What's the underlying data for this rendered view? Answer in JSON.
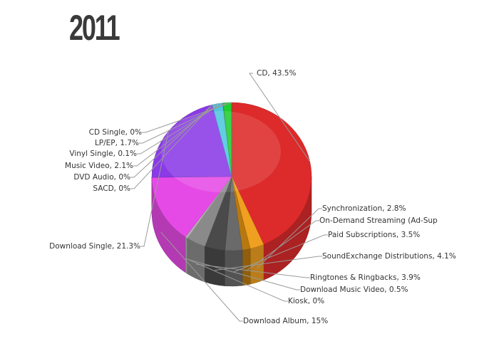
{
  "title": "2011",
  "chart_data": {
    "type": "pie",
    "title": "2011",
    "slices": [
      {
        "label": "CD, 43.5%",
        "name": "CD",
        "value": 43.5,
        "color": "#dd2a2a"
      },
      {
        "label": "Synchronization, 2.8%",
        "name": "Synchronization",
        "value": 2.8,
        "color": "#f0a020"
      },
      {
        "label": "On-Demand Streaming (Ad-Sup",
        "name": "On-Demand Streaming (Ad-Sup",
        "value": 1.6,
        "color": "#b87810"
      },
      {
        "label": "Paid Subscriptions, 3.5%",
        "name": "Paid Subscriptions",
        "value": 3.5,
        "color": "#6a6a6a"
      },
      {
        "label": "SoundExchange Distributions, 4.1%",
        "name": "SoundExchange Distributions",
        "value": 4.1,
        "color": "#4a4a4a"
      },
      {
        "label": "Ringtones & Ringbacks, 3.9%",
        "name": "Ringtones & Ringbacks",
        "value": 3.9,
        "color": "#8a8a8a"
      },
      {
        "label": "Download Music Video, 0.5%",
        "name": "Download Music Video",
        "value": 0.5,
        "color": "#b0b0b0"
      },
      {
        "label": "Kiosk, 0%",
        "name": "Kiosk",
        "value": 0,
        "color": "#cccccc"
      },
      {
        "label": "Download Album, 15%",
        "name": "Download Album",
        "value": 15,
        "color": "#e64ae6"
      },
      {
        "label": "Download Single, 21.3%",
        "name": "Download Single",
        "value": 21.3,
        "color": "#8a3ae6"
      },
      {
        "label": "SACD, 0%",
        "name": "SACD",
        "value": 0,
        "color": "#3a5ad8"
      },
      {
        "label": "DVD Audio, 0%",
        "name": "DVD Audio",
        "value": 0,
        "color": "#3aa0e0"
      },
      {
        "label": "Music Video, 2.1%",
        "name": "Music Video",
        "value": 2.1,
        "color": "#4ec6e0"
      },
      {
        "label": "Vinyl Single, 0.1%",
        "name": "Vinyl Single",
        "value": 0.1,
        "color": "#2aa84a"
      },
      {
        "label": "LP/EP, 1.7%",
        "name": "LP/EP",
        "value": 1.7,
        "color": "#22cc33"
      },
      {
        "label": "CD Single, 0%",
        "name": "CD Single",
        "value": 0,
        "color": "#1aa02a"
      }
    ]
  }
}
